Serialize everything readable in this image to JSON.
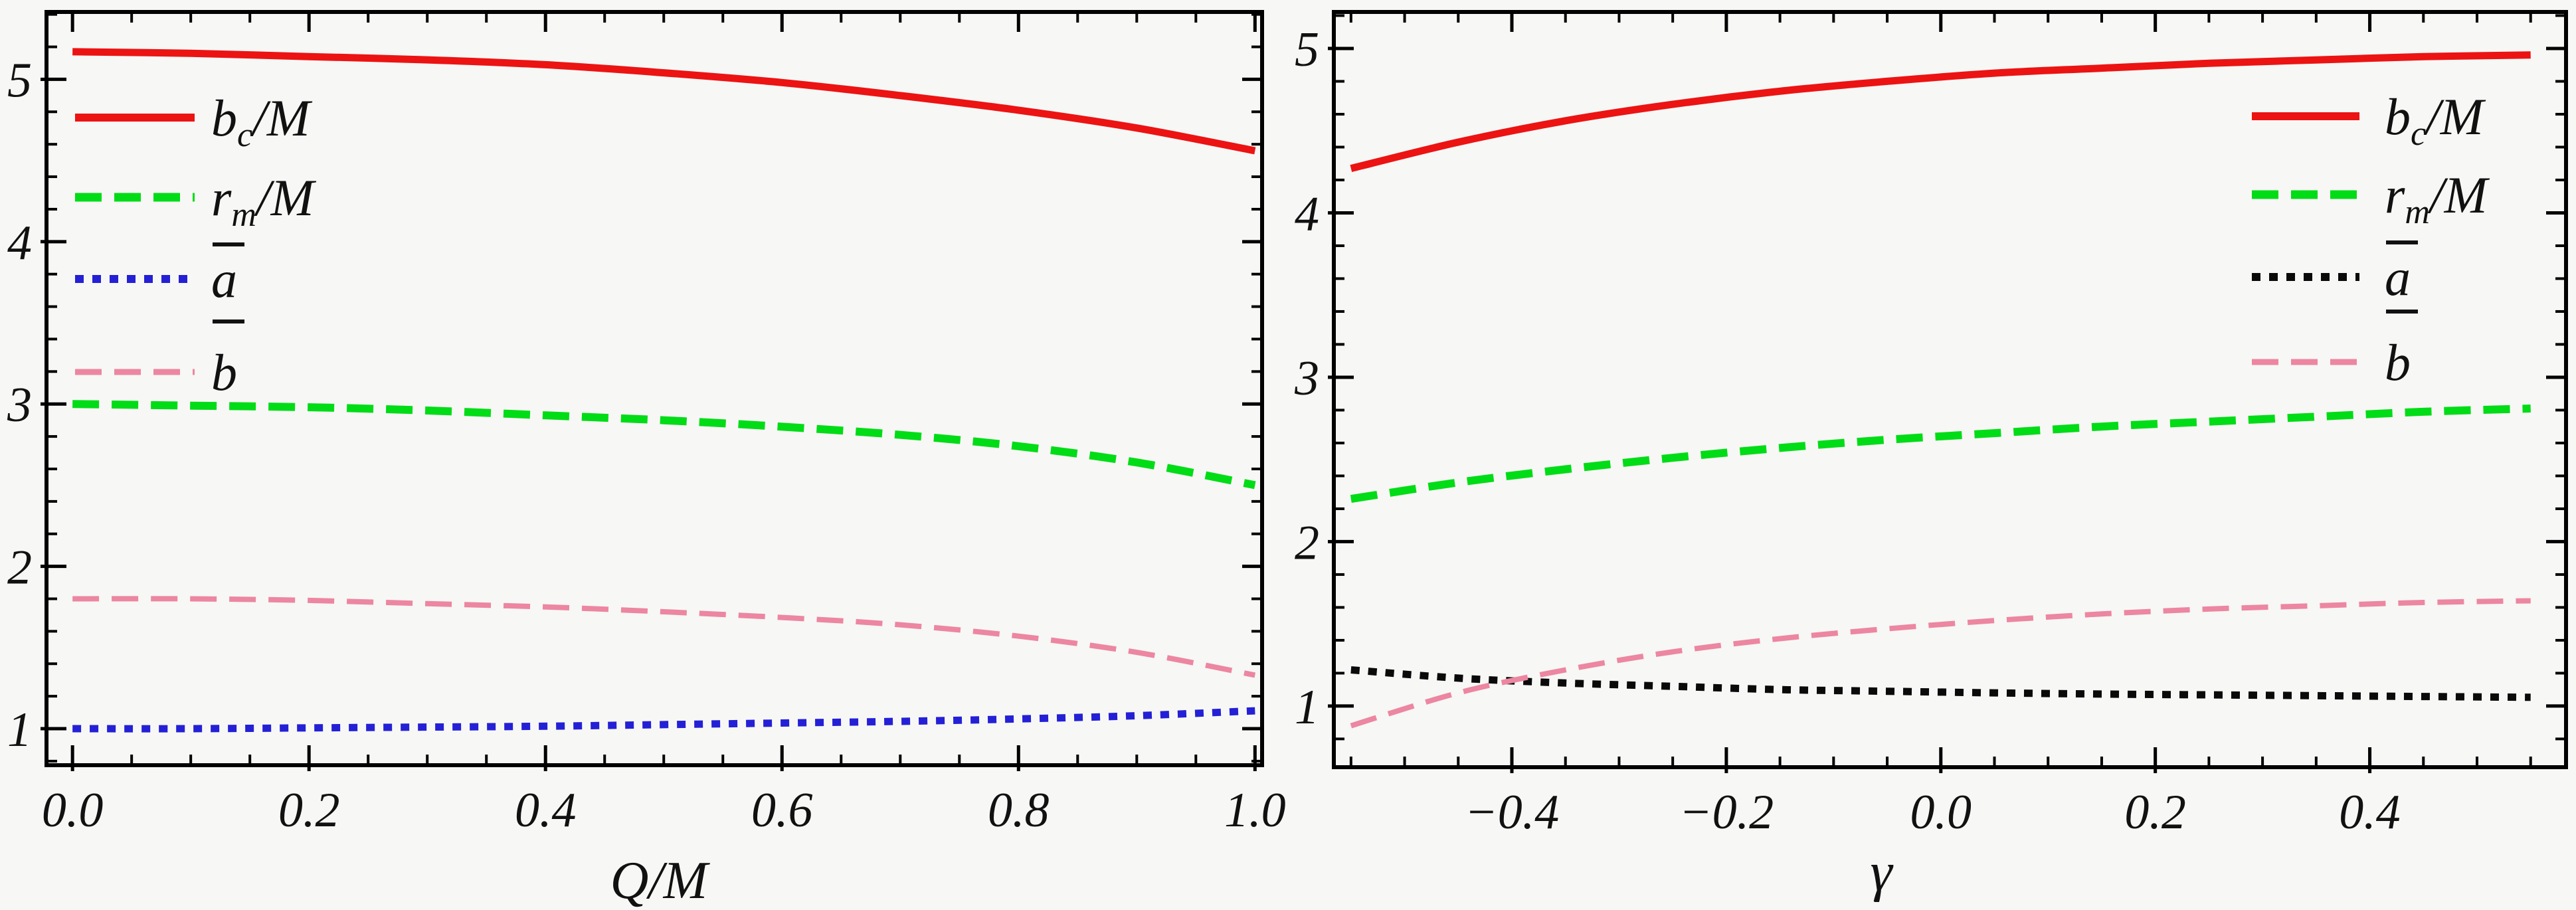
{
  "figure": {
    "background": "#f7f7f5",
    "frame_color": "#000000",
    "text_color": "#111111"
  },
  "chart_data": [
    {
      "id": "left-plot",
      "type": "line",
      "title": "",
      "xlabel": "Q/M",
      "ylabel": "",
      "xlim": [
        -0.022,
        1.006
      ],
      "ylim": [
        0.775,
        5.415
      ],
      "grid": false,
      "x_ticks": {
        "values": [
          0.0,
          0.2,
          0.4,
          0.6,
          0.8,
          1.0
        ],
        "labels": [
          "0.0",
          "0.2",
          "0.4",
          "0.6",
          "0.8",
          "1.0"
        ],
        "minor_step": 0.05
      },
      "y_ticks": {
        "values": [
          1,
          2,
          3,
          4,
          5
        ],
        "labels": [
          "1",
          "2",
          "3",
          "4",
          "5"
        ],
        "minor_step": 0.2
      },
      "x": [
        0.0,
        0.1,
        0.2,
        0.3,
        0.4,
        0.5,
        0.6,
        0.7,
        0.8,
        0.9,
        1.0
      ],
      "series": [
        {
          "name": "bc_over_M",
          "legend": {
            "main": "b",
            "sub": "c",
            "suffix": "/M",
            "overbar": false
          },
          "color": "#ec1313",
          "style": "solid",
          "width": 11,
          "values": [
            5.17,
            5.16,
            5.14,
            5.12,
            5.09,
            5.04,
            4.98,
            4.9,
            4.81,
            4.7,
            4.56
          ]
        },
        {
          "name": "rm_over_M",
          "legend": {
            "main": "r",
            "sub": "m",
            "suffix": "/M",
            "overbar": false
          },
          "color": "#00dc16",
          "style": "dashed",
          "width": 12,
          "values": [
            3.0,
            2.99,
            2.98,
            2.96,
            2.93,
            2.9,
            2.86,
            2.81,
            2.74,
            2.64,
            2.5
          ]
        },
        {
          "name": "a_bar",
          "legend": {
            "main": "a",
            "sub": "",
            "suffix": "",
            "overbar": true
          },
          "color": "#2420d6",
          "style": "dotted",
          "width": 11,
          "values": [
            1.0,
            1.0,
            1.005,
            1.01,
            1.015,
            1.025,
            1.035,
            1.045,
            1.06,
            1.08,
            1.11
          ]
        },
        {
          "name": "b_bar",
          "legend": {
            "main": "b",
            "sub": "",
            "suffix": "",
            "overbar": true
          },
          "color": "#ec86a1",
          "style": "dashed",
          "width": 8,
          "values": [
            1.8,
            1.8,
            1.79,
            1.77,
            1.75,
            1.72,
            1.685,
            1.64,
            1.57,
            1.47,
            1.33
          ]
        }
      ],
      "legend_position": "top-left"
    },
    {
      "id": "right-plot",
      "type": "line",
      "title": "",
      "xlabel": "γ",
      "ylabel": "",
      "xlim": [
        -0.566,
        0.583
      ],
      "ylim": [
        0.628,
        5.222
      ],
      "grid": false,
      "x_ticks": {
        "values": [
          -0.4,
          -0.2,
          0.0,
          0.2,
          0.4
        ],
        "labels": [
          "−0.4",
          "−0.2",
          "0.0",
          "0.2",
          "0.4"
        ],
        "minor_step": 0.05
      },
      "y_ticks": {
        "values": [
          1,
          2,
          3,
          4,
          5
        ],
        "labels": [
          "1",
          "2",
          "3",
          "4",
          "5"
        ],
        "minor_step": 0.2
      },
      "x": [
        -0.55,
        -0.45,
        -0.35,
        -0.25,
        -0.15,
        -0.05,
        0.05,
        0.15,
        0.25,
        0.35,
        0.45,
        0.55
      ],
      "series": [
        {
          "name": "bc_over_M",
          "legend": {
            "main": "b",
            "sub": "c",
            "suffix": "/M",
            "overbar": false
          },
          "color": "#ec1313",
          "style": "solid",
          "width": 11,
          "values": [
            4.27,
            4.43,
            4.56,
            4.66,
            4.74,
            4.8,
            4.85,
            4.88,
            4.91,
            4.93,
            4.95,
            4.96
          ]
        },
        {
          "name": "rm_over_M",
          "legend": {
            "main": "r",
            "sub": "m",
            "suffix": "/M",
            "overbar": false
          },
          "color": "#00dc16",
          "style": "dashed",
          "width": 12,
          "values": [
            2.26,
            2.36,
            2.44,
            2.51,
            2.57,
            2.62,
            2.66,
            2.7,
            2.73,
            2.76,
            2.79,
            2.81
          ]
        },
        {
          "name": "a_bar",
          "legend": {
            "main": "a",
            "sub": "",
            "suffix": "",
            "overbar": true
          },
          "color": "#0a0a0a",
          "style": "dotted",
          "width": 11,
          "values": [
            1.22,
            1.17,
            1.14,
            1.12,
            1.1,
            1.09,
            1.08,
            1.073,
            1.068,
            1.063,
            1.058,
            1.053
          ]
        },
        {
          "name": "b_bar",
          "legend": {
            "main": "b",
            "sub": "",
            "suffix": "",
            "overbar": true
          },
          "color": "#ec86a1",
          "style": "dashed",
          "width": 8,
          "values": [
            0.88,
            1.08,
            1.22,
            1.33,
            1.41,
            1.47,
            1.52,
            1.56,
            1.59,
            1.61,
            1.63,
            1.64
          ]
        }
      ],
      "legend_position": "top-right"
    }
  ]
}
